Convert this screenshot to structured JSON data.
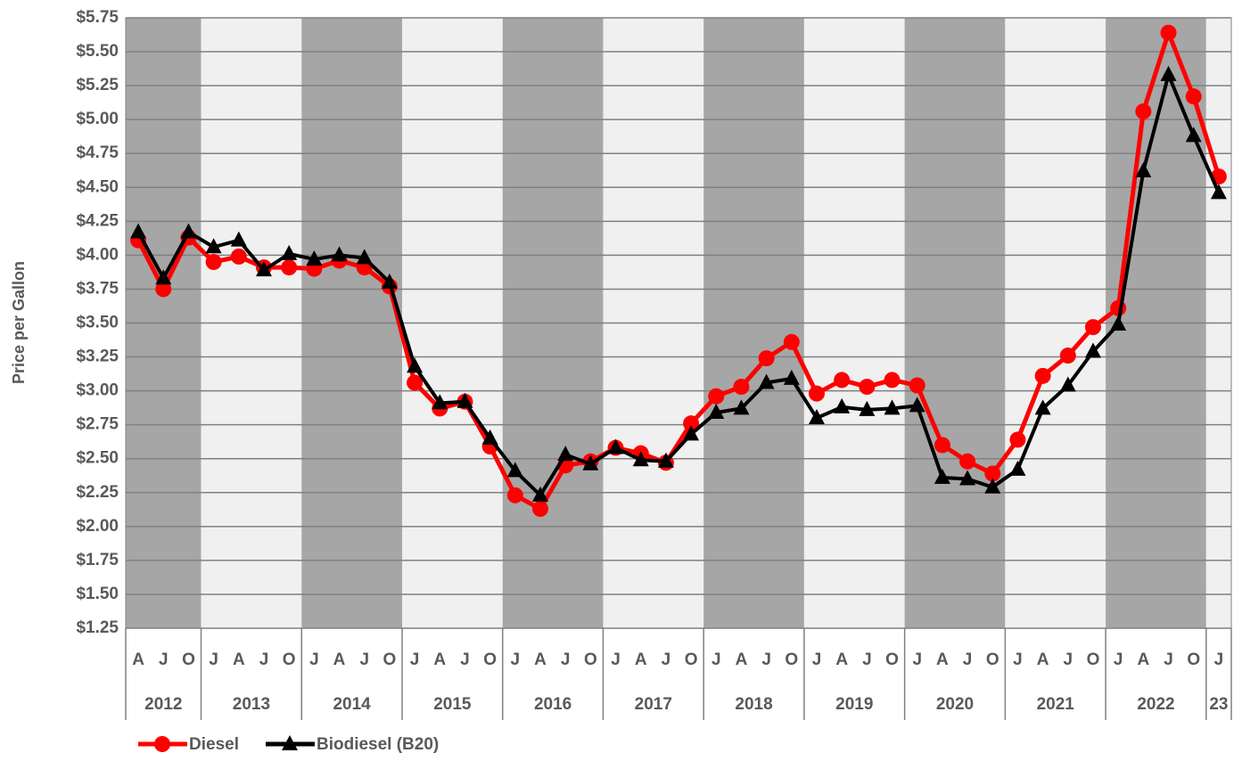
{
  "chart_data": {
    "type": "line",
    "y_label": "Price per Gallon",
    "categories": [
      "A",
      "J",
      "O",
      "J",
      "A",
      "J",
      "O",
      "J",
      "A",
      "J",
      "O",
      "J",
      "A",
      "J",
      "O",
      "J",
      "A",
      "J",
      "O",
      "J",
      "A",
      "J",
      "O",
      "J",
      "A",
      "J",
      "O",
      "J",
      "A",
      "J",
      "O",
      "J",
      "A",
      "J",
      "O",
      "J",
      "A",
      "J",
      "O",
      "J",
      "A",
      "J",
      "O",
      "J"
    ],
    "category_groups": [
      "2012",
      "2013",
      "2014",
      "2015",
      "2016",
      "2017",
      "2018",
      "2019",
      "2020",
      "2021",
      "2022",
      "23"
    ],
    "group_colors": [
      "#a6a6a6",
      "#f0f0f0"
    ],
    "series": [
      {
        "name": "Diesel",
        "color": "#ff0000",
        "marker": "circle",
        "values": [
          4.11,
          3.75,
          4.13,
          3.95,
          3.99,
          3.91,
          3.91,
          3.9,
          3.96,
          3.91,
          3.77,
          3.06,
          2.87,
          2.92,
          2.59,
          2.23,
          2.13,
          2.45,
          2.48,
          2.58,
          2.54,
          2.47,
          2.76,
          2.96,
          3.03,
          3.24,
          3.36,
          2.98,
          3.08,
          3.03,
          3.08,
          3.04,
          2.6,
          2.48,
          2.39,
          2.64,
          3.11,
          3.26,
          3.47,
          3.61,
          5.06,
          5.64,
          5.17,
          4.58
        ]
      },
      {
        "name": "Biodiesel (B20)",
        "color": "#000000",
        "marker": "triangle",
        "values": [
          4.17,
          3.83,
          4.17,
          4.06,
          4.11,
          3.89,
          4.01,
          3.97,
          4.0,
          3.98,
          3.8,
          3.18,
          2.91,
          2.92,
          2.65,
          2.41,
          2.23,
          2.53,
          2.46,
          2.58,
          2.49,
          2.48,
          2.68,
          2.84,
          2.87,
          3.06,
          3.09,
          2.8,
          2.88,
          2.86,
          2.87,
          2.89,
          2.36,
          2.35,
          2.29,
          2.42,
          2.87,
          3.04,
          3.29,
          3.49,
          4.62,
          5.33,
          4.88,
          4.46
        ]
      }
    ],
    "ylim": [
      1.25,
      5.75
    ],
    "yticks": [
      {
        "value": 1.25,
        "label": "$1.25"
      },
      {
        "value": 1.5,
        "label": "$1.50"
      },
      {
        "value": 1.75,
        "label": "$1.75"
      },
      {
        "value": 2.0,
        "label": "$2.00"
      },
      {
        "value": 2.25,
        "label": "$2.25"
      },
      {
        "value": 2.5,
        "label": "$2.50"
      },
      {
        "value": 2.75,
        "label": "$2.75"
      },
      {
        "value": 3.0,
        "label": "$3.00"
      },
      {
        "value": 3.25,
        "label": "$3.25"
      },
      {
        "value": 3.5,
        "label": "$3.50"
      },
      {
        "value": 3.75,
        "label": "$3.75"
      },
      {
        "value": 4.0,
        "label": "$4.00"
      },
      {
        "value": 4.25,
        "label": "$4.25"
      },
      {
        "value": 4.5,
        "label": "$4.50"
      },
      {
        "value": 4.75,
        "label": "$4.75"
      },
      {
        "value": 5.0,
        "label": "$5.00"
      },
      {
        "value": 5.25,
        "label": "$5.25"
      },
      {
        "value": 5.5,
        "label": "$5.50"
      },
      {
        "value": 5.75,
        "label": "$5.75"
      }
    ],
    "grid": true,
    "legend": "bottom-left"
  }
}
